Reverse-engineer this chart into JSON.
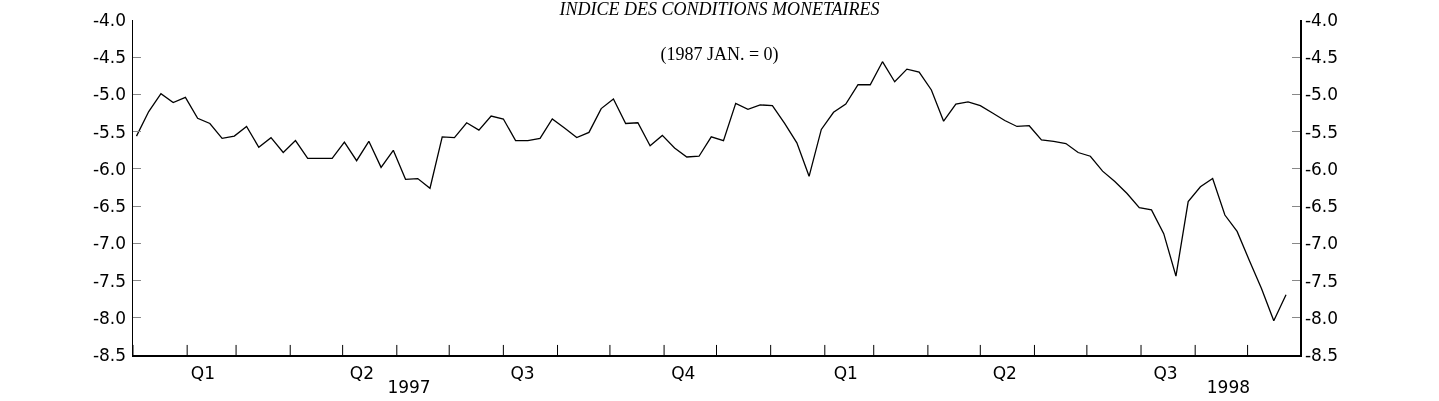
{
  "chart_data": {
    "type": "line",
    "title": "INDICE DES CONDITIONS MONETAIRES",
    "subtitle": "(1987 JAN. = 0)",
    "x": [
      "1997-01-03",
      "1997-01-10",
      "1997-01-17",
      "1997-01-24",
      "1997-01-31",
      "1997-02-07",
      "1997-02-14",
      "1997-02-21",
      "1997-02-28",
      "1997-03-07",
      "1997-03-14",
      "1997-03-21",
      "1997-03-28",
      "1997-04-04",
      "1997-04-11",
      "1997-04-18",
      "1997-04-25",
      "1997-05-02",
      "1997-05-09",
      "1997-05-16",
      "1997-05-23",
      "1997-05-30",
      "1997-06-06",
      "1997-06-13",
      "1997-06-20",
      "1997-06-27",
      "1997-07-04",
      "1997-07-11",
      "1997-07-18",
      "1997-07-25",
      "1997-08-01",
      "1997-08-08",
      "1997-08-15",
      "1997-08-22",
      "1997-08-29",
      "1997-09-05",
      "1997-09-12",
      "1997-09-19",
      "1997-09-26",
      "1997-10-03",
      "1997-10-10",
      "1997-10-17",
      "1997-10-24",
      "1997-10-31",
      "1997-11-07",
      "1997-11-14",
      "1997-11-21",
      "1997-11-28",
      "1997-12-05",
      "1997-12-12",
      "1997-12-19",
      "1997-12-26",
      "1998-01-02",
      "1998-01-09",
      "1998-01-16",
      "1998-01-23",
      "1998-01-30",
      "1998-02-06",
      "1998-02-13",
      "1998-02-20",
      "1998-02-27",
      "1998-03-06",
      "1998-03-13",
      "1998-03-20",
      "1998-03-27",
      "1998-04-03",
      "1998-04-10",
      "1998-04-17",
      "1998-04-24",
      "1998-05-01",
      "1998-05-08",
      "1998-05-15",
      "1998-05-22",
      "1998-05-29",
      "1998-06-05",
      "1998-06-12",
      "1998-06-19",
      "1998-06-26",
      "1998-07-03",
      "1998-07-10",
      "1998-07-17",
      "1998-07-24",
      "1998-07-31",
      "1998-08-07",
      "1998-08-14",
      "1998-08-21",
      "1998-08-28",
      "1998-09-04",
      "1998-09-11",
      "1998-09-18",
      "1998-09-25",
      "1998-10-02",
      "1998-10-09",
      "1998-10-16",
      "1998-10-23"
    ],
    "series": [
      {
        "color": "#000000",
        "values": [
          -5.56,
          -5.23,
          -4.99,
          -5.11,
          -5.04,
          -5.32,
          -5.39,
          -5.59,
          -5.56,
          -5.43,
          -5.71,
          -5.58,
          -5.78,
          -5.62,
          -5.86,
          -5.86,
          -5.86,
          -5.64,
          -5.89,
          -5.63,
          -5.98,
          -5.75,
          -6.14,
          -6.13,
          -6.26,
          -5.57,
          -5.58,
          -5.38,
          -5.48,
          -5.29,
          -5.33,
          -5.62,
          -5.62,
          -5.59,
          -5.33,
          -5.45,
          -5.58,
          -5.51,
          -5.19,
          -5.06,
          -5.39,
          -5.38,
          -5.69,
          -5.55,
          -5.72,
          -5.84,
          -5.83,
          -5.57,
          -5.62,
          -5.12,
          -5.2,
          -5.14,
          -5.15,
          -5.39,
          -5.65,
          -6.1,
          -5.47,
          -5.24,
          -5.13,
          -4.87,
          -4.87,
          -4.56,
          -4.83,
          -4.66,
          -4.7,
          -4.94,
          -5.36,
          -5.13,
          -5.1,
          -5.15,
          -5.25,
          -5.35,
          -5.43,
          -5.42,
          -5.61,
          -5.63,
          -5.66,
          -5.78,
          -5.83,
          -6.03,
          -6.17,
          -6.33,
          -6.52,
          -6.55,
          -6.87,
          -7.44,
          -6.44,
          -6.24,
          -6.13,
          -6.62,
          -6.84,
          -7.23,
          -7.61,
          -8.04,
          -7.69
        ]
      }
    ],
    "xlim": [
      "1997-01-01",
      "1998-10-31"
    ],
    "xticks": [
      {
        "value": "1997-01-01",
        "label": null
      },
      {
        "value": "1997-02-01",
        "label": null
      },
      {
        "value": "1997-03-01",
        "label": null
      },
      {
        "value": "1997-04-01",
        "label": null
      },
      {
        "value": "1997-05-01",
        "label": null
      },
      {
        "value": "1997-06-01",
        "label": null
      },
      {
        "value": "1997-07-01",
        "label": null
      },
      {
        "value": "1997-08-01",
        "label": null
      },
      {
        "value": "1997-09-01",
        "label": null
      },
      {
        "value": "1997-10-01",
        "label": null
      },
      {
        "value": "1997-11-01",
        "label": null
      },
      {
        "value": "1997-12-01",
        "label": null
      },
      {
        "value": "1998-01-01",
        "label": null
      },
      {
        "value": "1998-02-01",
        "label": null
      },
      {
        "value": "1998-03-01",
        "label": null
      },
      {
        "value": "1998-04-01",
        "label": null
      },
      {
        "value": "1998-05-01",
        "label": null
      },
      {
        "value": "1998-06-01",
        "label": null
      },
      {
        "value": "1998-07-01",
        "label": null
      },
      {
        "value": "1998-08-01",
        "label": null
      },
      {
        "value": "1998-09-01",
        "label": null
      },
      {
        "value": "1998-10-01",
        "label": null
      },
      {
        "value": "1997-02-10",
        "label": "Q1"
      },
      {
        "value": "1997-05-12",
        "label": "Q2"
      },
      {
        "value": "1997-08-12",
        "label": "Q3"
      },
      {
        "value": "1997-11-12",
        "label": "Q4"
      },
      {
        "value": "1998-02-13",
        "label": "Q1"
      },
      {
        "value": "1998-05-15",
        "label": "Q2"
      },
      {
        "value": "1998-08-15",
        "label": "Q3"
      }
    ],
    "x2lim": [
      "1997-01-01",
      "1998-10-31"
    ],
    "x2ticks": [
      {
        "value": "1997-06-08",
        "label": "1997"
      },
      {
        "value": "1998-09-20",
        "label": "1998"
      }
    ],
    "ylim": [
      -8.5,
      -4.0
    ],
    "yticks": [
      {
        "value": -8.5,
        "label": "-8.5"
      },
      {
        "value": -8.0,
        "label": "-8.0"
      },
      {
        "value": -7.5,
        "label": "-7.5"
      },
      {
        "value": -7.0,
        "label": "-7.0"
      },
      {
        "value": -6.5,
        "label": "-6.5"
      },
      {
        "value": -6.0,
        "label": "-6.0"
      },
      {
        "value": -5.5,
        "label": "-5.5"
      },
      {
        "value": -5.0,
        "label": "-5.0"
      },
      {
        "value": -4.5,
        "label": "-4.5"
      },
      {
        "value": -4.0,
        "label": "-4.0"
      }
    ],
    "y2lim": [
      -8.5,
      -4.0
    ],
    "y2ticks": [
      {
        "value": -8.5,
        "label": "-8.5"
      },
      {
        "value": -8.0,
        "label": "-8.0"
      },
      {
        "value": -7.5,
        "label": "-7.5"
      },
      {
        "value": -7.0,
        "label": "-7.0"
      },
      {
        "value": -6.5,
        "label": "-6.5"
      },
      {
        "value": -6.0,
        "label": "-6.0"
      },
      {
        "value": -5.5,
        "label": "-5.5"
      },
      {
        "value": -5.0,
        "label": "-5.0"
      },
      {
        "value": -4.5,
        "label": "-4.5"
      },
      {
        "value": -4.0,
        "label": "-4.0"
      }
    ],
    "grid": false,
    "marker": "none",
    "line_style": "solid"
  }
}
